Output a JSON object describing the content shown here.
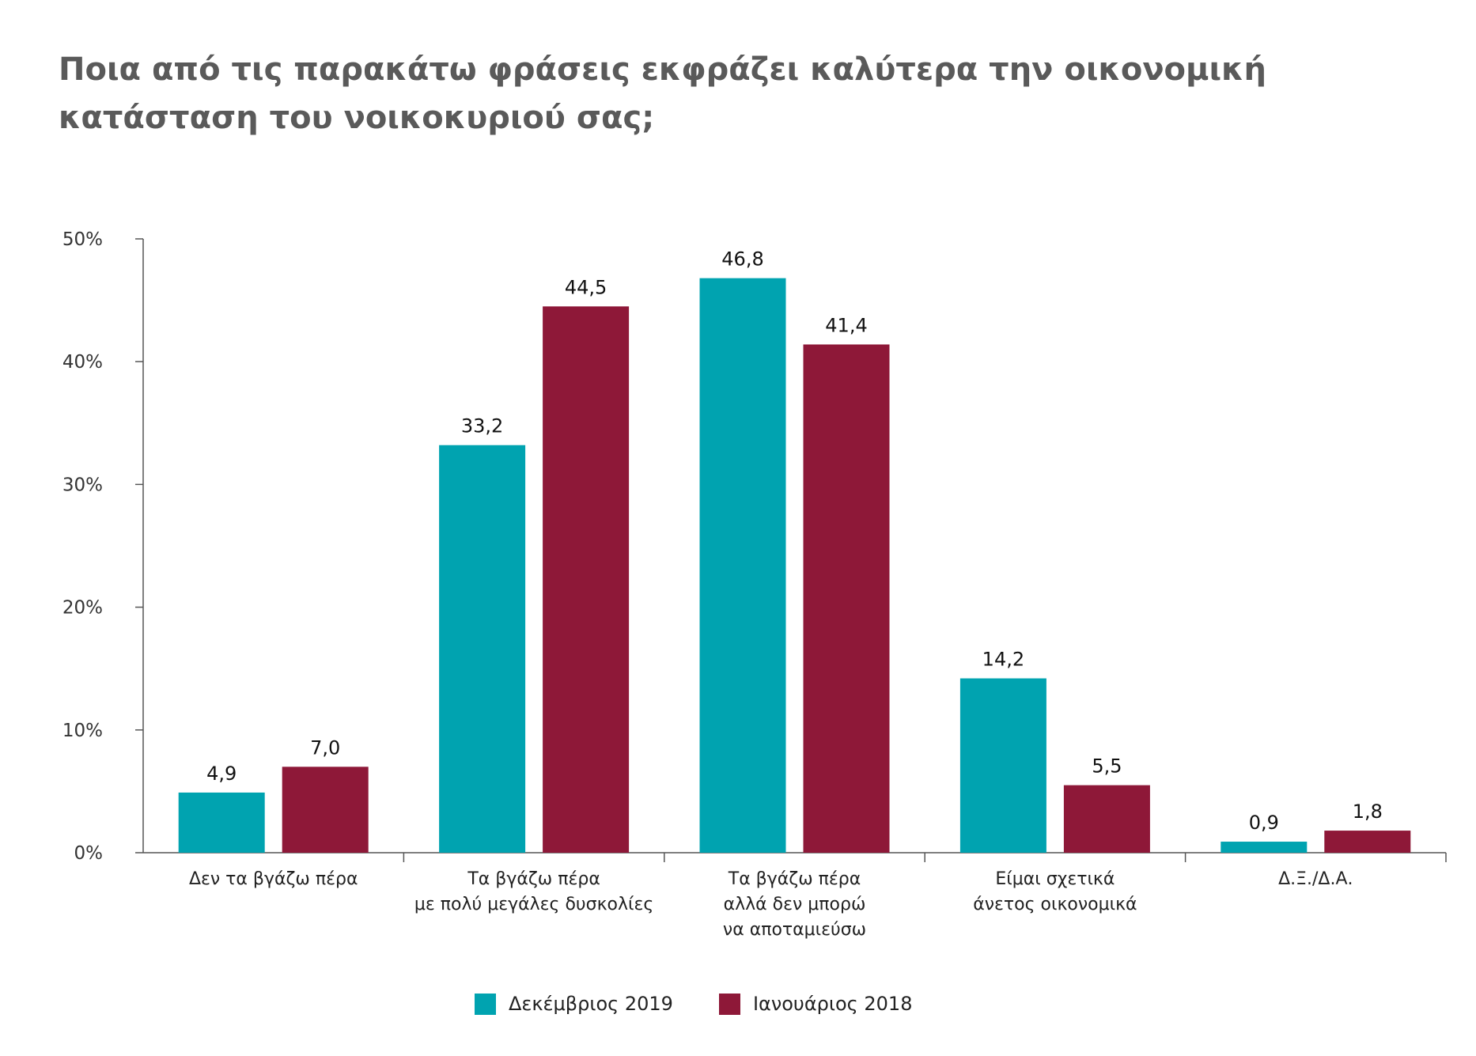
{
  "title_lines": [
    "Ποια από τις παρακάτω φράσεις εκφράζει καλύτερα την οικονομική",
    "κατάσταση του νοικοκυριού σας;"
  ],
  "colors": {
    "dec2019": "#00a3b0",
    "jan2018": "#8e1838"
  },
  "chart_data": {
    "type": "bar",
    "title": "Ποια από τις παρακάτω φράσεις εκφράζει καλύτερα την οικονομική κατάσταση του νοικοκυριού σας;",
    "categories": [
      [
        "Δεν τα βγάζω πέρα"
      ],
      [
        "Τα βγάζω πέρα",
        "με πολύ μεγάλες δυσκολίες"
      ],
      [
        "Τα βγάζω πέρα",
        "αλλά δεν μπορώ",
        "να αποταμιεύσω"
      ],
      [
        "Είμαι σχετικά",
        "άνετος οικονομικά"
      ],
      [
        "Δ.Ξ./Δ.Α."
      ]
    ],
    "series": [
      {
        "name": "Δεκέμβριος 2019",
        "values": [
          4.9,
          33.2,
          46.8,
          14.2,
          0.9
        ],
        "labels": [
          "4,9",
          "33,2",
          "46,8",
          "14,2",
          "0,9"
        ]
      },
      {
        "name": "Ιανουάριος 2018",
        "values": [
          7.0,
          44.5,
          41.4,
          5.5,
          1.8
        ],
        "labels": [
          "7,0",
          "44,5",
          "41,4",
          "5,5",
          "1,8"
        ]
      }
    ],
    "ylim": [
      0,
      50
    ],
    "yticks": [
      "0%",
      "10%",
      "20%",
      "30%",
      "40%",
      "50%"
    ],
    "legend_position": "bottom",
    "grid": false
  }
}
